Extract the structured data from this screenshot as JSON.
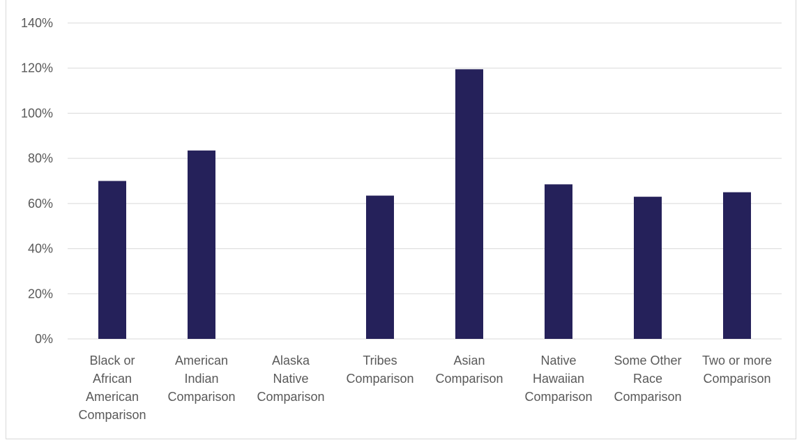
{
  "chart_data": {
    "type": "bar",
    "title": "",
    "categories": [
      [
        "Black or",
        "African",
        "American",
        "Comparison"
      ],
      [
        "American",
        "Indian",
        "Comparison"
      ],
      [
        "Alaska",
        "Native",
        "Comparison"
      ],
      [
        "Tribes",
        "Comparison"
      ],
      [
        "Asian",
        "Comparison"
      ],
      [
        "Native",
        "Hawaiian",
        "Comparison"
      ],
      [
        "Some Other",
        "Race",
        "Comparison"
      ],
      [
        "Two or more",
        "Comparison"
      ]
    ],
    "values": [
      0.7,
      0.835,
      null,
      0.635,
      1.195,
      0.685,
      0.63,
      0.65
    ],
    "ylim": [
      0,
      1.4
    ],
    "yticks": [
      0,
      0.2,
      0.4,
      0.6,
      0.8,
      1.0,
      1.2,
      1.4
    ],
    "ytick_labels": [
      "0%",
      "20%",
      "40%",
      "60%",
      "80%",
      "100%",
      "120%",
      "140%"
    ],
    "xlabel": "",
    "ylabel": "",
    "grid": true,
    "colors": {
      "bar": "#25215a",
      "grid": "#d9d9d9",
      "text": "#595959"
    }
  }
}
